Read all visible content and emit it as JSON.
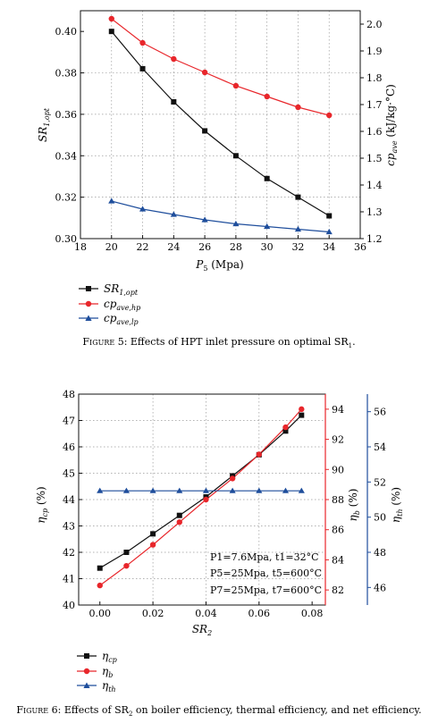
{
  "chart_data": [
    {
      "type": "line",
      "x": [
        20,
        22,
        24,
        26,
        28,
        30,
        32,
        34
      ],
      "xlim": [
        18,
        36
      ],
      "xticks": [
        18,
        20,
        22,
        24,
        26,
        28,
        30,
        32,
        34,
        36
      ],
      "ylim": [
        0.3,
        0.41
      ],
      "yticks": [
        0.3,
        0.32,
        0.34,
        0.36,
        0.38,
        0.4
      ],
      "y2lim": [
        1.2,
        2.05
      ],
      "y2ticks": [
        1.2,
        1.3,
        1.4,
        1.5,
        1.6,
        1.7,
        1.8,
        1.9,
        2.0
      ],
      "grid": true,
      "series": [
        {
          "key": "sr",
          "axis": "left",
          "color": "#111111",
          "marker": "square",
          "values": [
            0.4,
            0.382,
            0.366,
            0.352,
            0.34,
            0.329,
            0.32,
            0.311
          ]
        },
        {
          "key": "hp",
          "axis": "right",
          "color": "#e8262b",
          "marker": "circle",
          "values": [
            2.02,
            1.93,
            1.87,
            1.82,
            1.77,
            1.73,
            1.69,
            1.66
          ]
        },
        {
          "key": "lp",
          "axis": "right",
          "color": "#1f4e9c",
          "marker": "triangle",
          "values": [
            1.34,
            1.31,
            1.29,
            1.27,
            1.255,
            1.245,
            1.235,
            1.225
          ]
        }
      ]
    },
    {
      "type": "line",
      "x": [
        0.0,
        0.01,
        0.02,
        0.03,
        0.04,
        0.05,
        0.06,
        0.07,
        0.076
      ],
      "xlim": [
        -0.008,
        0.085
      ],
      "xticks": [
        0.0,
        0.02,
        0.04,
        0.06,
        0.08
      ],
      "ylim": [
        40,
        48
      ],
      "yticks": [
        40,
        41,
        42,
        43,
        44,
        45,
        46,
        47,
        48
      ],
      "y2lim": [
        81,
        95
      ],
      "y2ticks": [
        82,
        84,
        86,
        88,
        90,
        92,
        94
      ],
      "y3lim": [
        45,
        57
      ],
      "y3ticks": [
        46,
        48,
        50,
        52,
        54,
        56
      ],
      "grid": true,
      "series": [
        {
          "key": "cp",
          "axis": "left",
          "color": "#111111",
          "marker": "square",
          "values": [
            41.4,
            42.0,
            42.7,
            43.4,
            44.1,
            44.9,
            45.7,
            46.6,
            47.2
          ]
        },
        {
          "key": "b",
          "axis": "right",
          "color": "#e8262b",
          "marker": "circle",
          "values": [
            82.3,
            83.6,
            85.0,
            86.5,
            88.0,
            89.4,
            91.0,
            92.8,
            94.0
          ]
        },
        {
          "key": "th",
          "axis": "far-right",
          "color": "#1f4e9c",
          "marker": "triangle",
          "values": [
            51.5,
            51.5,
            51.5,
            51.5,
            51.5,
            51.5,
            51.5,
            51.5,
            51.5
          ]
        }
      ]
    }
  ],
  "fig5": {
    "ylabel": {
      "main": "SR",
      "sub": "1,opt"
    },
    "y2label": {
      "main": "cp",
      "sub": "ave",
      "unit": " (kJ/kg·°C)"
    },
    "xlabel": {
      "main": "P",
      "sub": "5",
      "unit": " (Mpa)"
    },
    "legend": [
      {
        "main": "SR",
        "sub": "1,opt"
      },
      {
        "main": "cp",
        "sub": "ave,hp"
      },
      {
        "main": "cp",
        "sub": "ave,lp"
      }
    ],
    "caption": {
      "label": "Figure 5:",
      "text": " Effects of HPT inlet pressure on optimal SR",
      "sub": "1",
      "end": "."
    }
  },
  "fig6": {
    "ylabel": {
      "main": "η",
      "sub": "cp",
      "unit": " (%)"
    },
    "y2label": {
      "main": "η",
      "sub": "b",
      "unit": " (%)"
    },
    "y3label": {
      "main": "η",
      "sub": "th",
      "unit": " (%)"
    },
    "xlabel": {
      "main": "SR",
      "sub": "2"
    },
    "annotations": [
      "P1=7.6Mpa, t1=32°C",
      "P5=25Mpa, t5=600°C",
      "P7=25Mpa, t7=600°C"
    ],
    "legend": [
      {
        "main": "η",
        "sub": "cp"
      },
      {
        "main": "η",
        "sub": "b"
      },
      {
        "main": "η",
        "sub": "th"
      }
    ],
    "caption": {
      "label": "Figure 6:",
      "text1": " Effects of SR",
      "sub": "2",
      "text2": " on boiler efficiency, thermal efficiency, and net efficiency."
    }
  }
}
